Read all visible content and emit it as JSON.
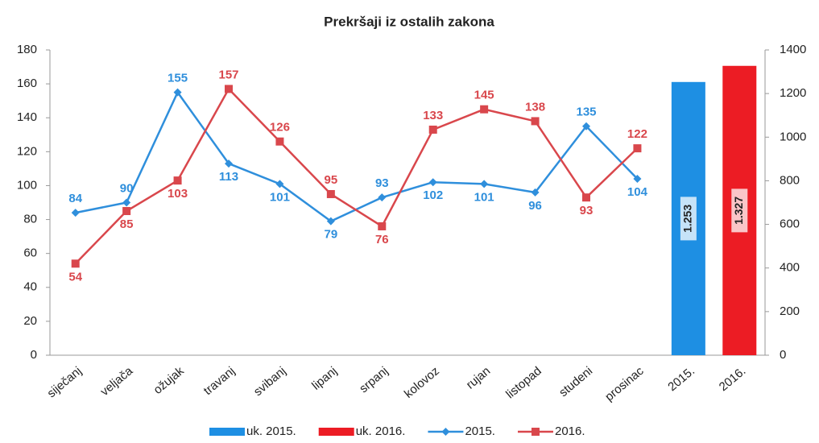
{
  "chart_data": {
    "type": "combo",
    "title": "Prekršaji iz ostalih zakona",
    "categories": [
      "siječanj",
      "veljača",
      "ožujak",
      "travanj",
      "svibanj",
      "lipanj",
      "srpanj",
      "kolovoz",
      "rujan",
      "listopad",
      "studeni",
      "prosinac",
      "2015.",
      "2016."
    ],
    "ylim": [
      0,
      180
    ],
    "yticks": [
      0,
      20,
      40,
      60,
      80,
      100,
      120,
      140,
      160,
      180
    ],
    "y2lim": [
      0,
      1400
    ],
    "y2ticks": [
      0,
      200,
      400,
      600,
      800,
      1000,
      1200,
      1400
    ],
    "legend": "bottom",
    "series": [
      {
        "name": "uk. 2015.",
        "type": "bar",
        "axis": "y2",
        "color": "#1e8fe3",
        "values": [
          null,
          null,
          null,
          null,
          null,
          null,
          null,
          null,
          null,
          null,
          null,
          null,
          1253,
          null
        ],
        "value_labels": [
          null,
          null,
          null,
          null,
          null,
          null,
          null,
          null,
          null,
          null,
          null,
          null,
          "1.253",
          null
        ]
      },
      {
        "name": "uk. 2016.",
        "type": "bar",
        "axis": "y2",
        "color": "#ec1c24",
        "values": [
          null,
          null,
          null,
          null,
          null,
          null,
          null,
          null,
          null,
          null,
          null,
          null,
          null,
          1327
        ],
        "value_labels": [
          null,
          null,
          null,
          null,
          null,
          null,
          null,
          null,
          null,
          null,
          null,
          null,
          null,
          "1.327"
        ]
      },
      {
        "name": "2015.",
        "type": "line",
        "marker": "diamond",
        "color": "#2f8fdc",
        "values": [
          84,
          90,
          155,
          113,
          101,
          79,
          93,
          102,
          101,
          96,
          135,
          104,
          null,
          null
        ]
      },
      {
        "name": "2016.",
        "type": "line",
        "marker": "square",
        "color": "#d9474c",
        "values": [
          54,
          85,
          103,
          157,
          126,
          95,
          76,
          133,
          145,
          138,
          93,
          122,
          null,
          null
        ]
      }
    ]
  }
}
